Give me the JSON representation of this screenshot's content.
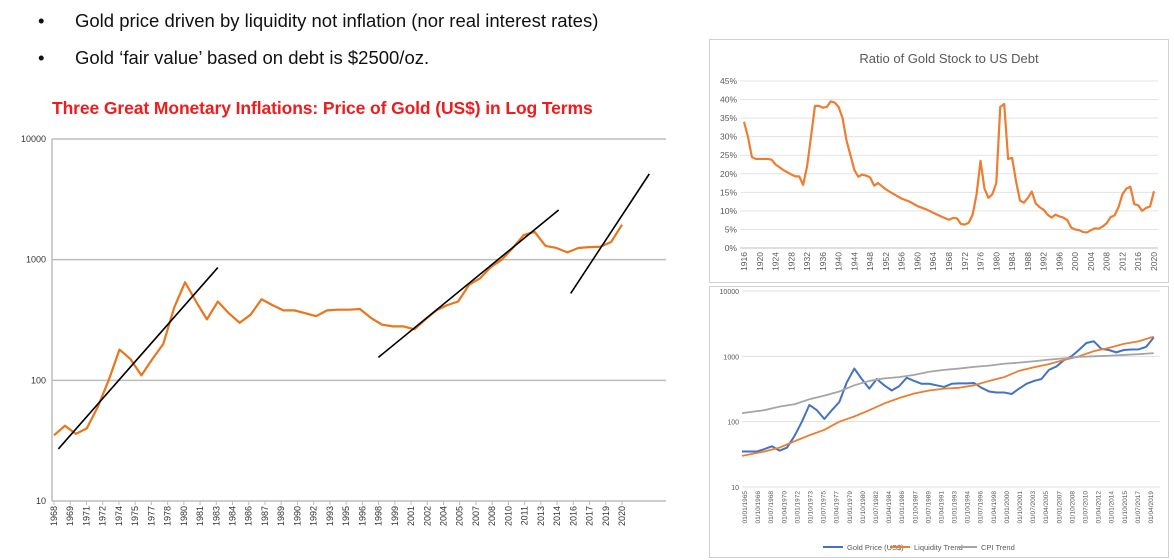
{
  "bullets": [
    {
      "symbol": "•",
      "text": "Gold price driven by liquidity not inflation (nor real interest rates)"
    },
    {
      "symbol": "•",
      "text": "Gold ‘fair value’ based on debt is $2500/oz."
    }
  ],
  "colors": {
    "title": "#ee1c1c",
    "gold_orange": "#e8761a",
    "gold_blue": "#4472c4",
    "liquidity": "#ed7d31",
    "cpi": "#a5a5a5",
    "trendline": "#000000"
  },
  "chart_data": [
    {
      "id": "main",
      "type": "line",
      "title": "Three Great Monetary Inflations: Price of Gold (US$) in Log Terms",
      "y_scale": "log",
      "ylim": [
        10,
        10000
      ],
      "y_ticks": [
        "10",
        "100",
        "1000",
        "10000"
      ],
      "grid": true,
      "x_tick_labels": [
        "1968",
        "1969",
        "1971",
        "1972",
        "1974",
        "1975",
        "1977",
        "1978",
        "1980",
        "1981",
        "1983",
        "1984",
        "1986",
        "1987",
        "1989",
        "1990",
        "1992",
        "1993",
        "1995",
        "1996",
        "1998",
        "1999",
        "2001",
        "2002",
        "2004",
        "2005",
        "2007",
        "2008",
        "2010",
        "2011",
        "2013",
        "2014",
        "2016",
        "2017",
        "2019",
        "2020"
      ],
      "series": [
        {
          "x": [
            1968,
            1969,
            1970,
            1971,
            1972,
            1973,
            1974,
            1975,
            1976,
            1977,
            1978,
            1979,
            1980,
            1981,
            1982,
            1983,
            1984,
            1985,
            1986,
            1987,
            1988,
            1989,
            1990,
            1991,
            1992,
            1993,
            1994,
            1995,
            1996,
            1997,
            1998,
            1999,
            2000,
            2001,
            2002,
            2003,
            2004,
            2005,
            2006,
            2007,
            2008,
            2009,
            2010,
            2011,
            2012,
            2013,
            2014,
            2015,
            2016,
            2017,
            2018,
            2019,
            2020
          ],
          "values": [
            35,
            42,
            36,
            40,
            60,
            100,
            180,
            150,
            110,
            150,
            200,
            400,
            650,
            450,
            320,
            450,
            360,
            300,
            350,
            470,
            420,
            380,
            380,
            360,
            340,
            380,
            385,
            385,
            390,
            330,
            290,
            280,
            280,
            265,
            320,
            380,
            420,
            450,
            620,
            700,
            870,
            1000,
            1250,
            1600,
            1700,
            1300,
            1250,
            1150,
            1250,
            1270,
            1280,
            1400,
            1950
          ]
        }
      ],
      "trendlines": [
        {
          "from": [
            1968.4,
            27
          ],
          "to": [
            1983.0,
            860
          ]
        },
        {
          "from": [
            1997.7,
            155
          ],
          "to": [
            2014.2,
            2580
          ]
        },
        {
          "from": [
            2015.3,
            525
          ],
          "to": [
            2022.5,
            5140
          ]
        }
      ]
    },
    {
      "id": "ratio",
      "type": "line",
      "title": "Ratio of Gold Stock to US Debt",
      "ylim": [
        0,
        45
      ],
      "y_ticks": [
        "0%",
        "5%",
        "10%",
        "15%",
        "20%",
        "25%",
        "30%",
        "35%",
        "40%",
        "45%"
      ],
      "grid": true,
      "x_tick_labels": [
        "1916",
        "1920",
        "1924",
        "1928",
        "1932",
        "1936",
        "1940",
        "1944",
        "1948",
        "1952",
        "1956",
        "1960",
        "1964",
        "1968",
        "1972",
        "1976",
        "1980",
        "1984",
        "1988",
        "1992",
        "1996",
        "2000",
        "2004",
        "2008",
        "2012",
        "2016",
        "2020"
      ],
      "series": [
        {
          "x": [
            1916,
            1917,
            1918,
            1919,
            1920,
            1922,
            1923,
            1924,
            1926,
            1928,
            1929,
            1930,
            1931,
            1932,
            1933,
            1934,
            1935,
            1936,
            1937,
            1938,
            1939,
            1940,
            1941,
            1942,
            1943,
            1944,
            1945,
            1946,
            1947,
            1948,
            1949,
            1950,
            1952,
            1954,
            1956,
            1958,
            1960,
            1962,
            1964,
            1966,
            1968,
            1969,
            1970,
            1971,
            1972,
            1973,
            1974,
            1975,
            1976,
            1977,
            1978,
            1979,
            1980,
            1981,
            1982,
            1983,
            1984,
            1985,
            1986,
            1987,
            1988,
            1989,
            1990,
            1991,
            1992,
            1993,
            1994,
            1995,
            1996,
            1997,
            1998,
            1999,
            2000,
            2001,
            2002,
            2003,
            2004,
            2005,
            2006,
            2007,
            2008,
            2009,
            2010,
            2011,
            2012,
            2013,
            2014,
            2015,
            2016,
            2017,
            2018,
            2019,
            2020
          ],
          "values": [
            34,
            30,
            24.5,
            24,
            24,
            24,
            23.8,
            22.5,
            21,
            19.8,
            19.3,
            19.3,
            17,
            22,
            30,
            38.3,
            38.3,
            37.8,
            38,
            39.5,
            39.2,
            38,
            35,
            29,
            25,
            21,
            19.2,
            19.8,
            19.5,
            19,
            16.8,
            17.5,
            15.8,
            14.5,
            13.3,
            12.5,
            11.3,
            10.5,
            9.5,
            8.5,
            7.6,
            8.1,
            8,
            6.5,
            6.3,
            6.8,
            9,
            14.5,
            23.5,
            16,
            13.5,
            14.5,
            17.5,
            38,
            38.8,
            24,
            24.3,
            18,
            12.8,
            12.2,
            13.5,
            15.2,
            12,
            11,
            10.3,
            9,
            8.2,
            9,
            8.5,
            8.2,
            7.5,
            5.5,
            5,
            4.8,
            4.3,
            4.2,
            4.8,
            5.3,
            5.2,
            5.8,
            6.7,
            8.3,
            8.8,
            11,
            14.5,
            16,
            16.5,
            11.8,
            11.5,
            10,
            10.8,
            11.2,
            15.3
          ]
        }
      ]
    },
    {
      "id": "trend",
      "type": "line",
      "y_scale": "log",
      "ylim": [
        10,
        10000
      ],
      "y_ticks": [
        "10",
        "100",
        "1000",
        "10000"
      ],
      "grid": true,
      "legend": "bottom",
      "x_tick_labels": [
        "01/01/1965",
        "01/10/1966",
        "01/07/1968",
        "01/04/1970",
        "01/01/1972",
        "01/10/1973",
        "01/07/1975",
        "01/04/1977",
        "01/01/1979",
        "01/10/1980",
        "01/07/1982",
        "01/04/1984",
        "01/01/1986",
        "01/10/1987",
        "01/07/1989",
        "01/04/1991",
        "01/01/1993",
        "01/10/1994",
        "01/07/1996",
        "01/04/1998",
        "01/01/2000",
        "01/10/2001",
        "01/07/2003",
        "01/04/2005",
        "01/01/2007",
        "01/10/2008",
        "01/07/2010",
        "01/04/2012",
        "01/01/2014",
        "01/10/2015",
        "01/07/2017",
        "01/04/2019"
      ],
      "series": [
        {
          "name": "Gold Price (US$)",
          "color": "#4472c4",
          "x": [
            1965,
            1966,
            1967,
            1968,
            1969,
            1970,
            1971,
            1972,
            1973,
            1974,
            1975,
            1976,
            1977,
            1978,
            1979,
            1980,
            1981,
            1982,
            1983,
            1984,
            1985,
            1986,
            1987,
            1988,
            1989,
            1990,
            1991,
            1992,
            1993,
            1994,
            1995,
            1996,
            1997,
            1998,
            1999,
            2000,
            2001,
            2002,
            2003,
            2004,
            2005,
            2006,
            2007,
            2008,
            2009,
            2010,
            2011,
            2012,
            2013,
            2014,
            2015,
            2016,
            2017,
            2018,
            2019,
            2020
          ],
          "values": [
            35,
            35,
            35,
            38,
            42,
            36,
            40,
            60,
            100,
            180,
            150,
            110,
            150,
            200,
            400,
            650,
            450,
            320,
            450,
            360,
            300,
            350,
            470,
            420,
            380,
            380,
            360,
            340,
            380,
            385,
            385,
            390,
            330,
            290,
            280,
            280,
            265,
            320,
            380,
            420,
            450,
            620,
            700,
            870,
            1000,
            1250,
            1600,
            1700,
            1300,
            1250,
            1150,
            1250,
            1270,
            1280,
            1400,
            1950
          ]
        },
        {
          "name": "Liquidity Trend",
          "color": "#ed7d31",
          "x": [
            1965,
            1968,
            1970,
            1972,
            1974,
            1976,
            1978,
            1980,
            1982,
            1984,
            1986,
            1988,
            1990,
            1992,
            1994,
            1996,
            1998,
            2000,
            2002,
            2004,
            2006,
            2008,
            2010,
            2012,
            2014,
            2016,
            2018,
            2020
          ],
          "values": [
            30,
            35,
            40,
            50,
            62,
            75,
            100,
            120,
            150,
            190,
            230,
            270,
            300,
            320,
            330,
            360,
            420,
            480,
            600,
            680,
            760,
            880,
            1000,
            1200,
            1350,
            1550,
            1700,
            2000
          ]
        },
        {
          "name": "CPI Trend",
          "color": "#a5a5a5",
          "x": [
            1965,
            1968,
            1970,
            1972,
            1974,
            1976,
            1978,
            1980,
            1982,
            1984,
            1986,
            1988,
            1990,
            1992,
            1994,
            1996,
            1998,
            2000,
            2002,
            2004,
            2006,
            2008,
            2010,
            2012,
            2014,
            2016,
            2018,
            2020
          ],
          "values": [
            135,
            150,
            170,
            185,
            220,
            250,
            290,
            360,
            420,
            460,
            480,
            520,
            580,
            620,
            650,
            690,
            720,
            770,
            800,
            840,
            890,
            930,
            980,
            1000,
            1020,
            1050,
            1080,
            1120
          ]
        }
      ]
    }
  ]
}
